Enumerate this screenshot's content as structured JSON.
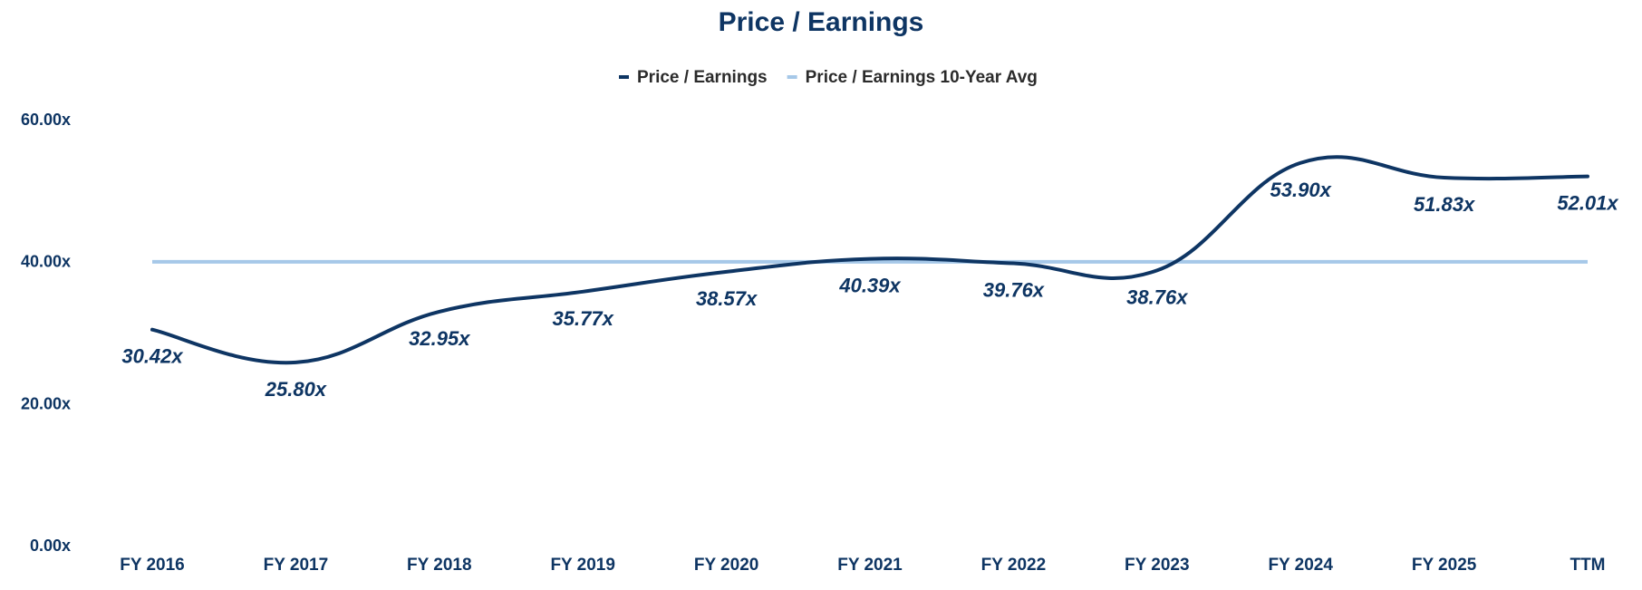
{
  "chart_data": {
    "type": "line",
    "title": "Price / Earnings",
    "xlabel": "",
    "ylabel": "",
    "categories": [
      "FY 2016",
      "FY 2017",
      "FY 2018",
      "FY 2019",
      "FY 2020",
      "FY 2021",
      "FY 2022",
      "FY 2023",
      "FY 2024",
      "FY 2025",
      "TTM"
    ],
    "series": [
      {
        "name": "Price / Earnings",
        "values": [
          30.42,
          25.8,
          32.95,
          35.77,
          38.57,
          40.39,
          39.76,
          38.76,
          53.9,
          51.83,
          52.01
        ],
        "labels": [
          "30.42x",
          "25.80x",
          "32.95x",
          "35.77x",
          "38.57x",
          "40.39x",
          "39.76x",
          "38.76x",
          "53.90x",
          "51.83x",
          "52.01x"
        ],
        "color": "#0e3563"
      },
      {
        "name": "Price / Earnings 10-Year Avg",
        "values": [
          39.97,
          39.97,
          39.97,
          39.97,
          39.97,
          39.97,
          39.97,
          39.97,
          39.97,
          39.97,
          39.97
        ],
        "color": "#a6c8e8"
      }
    ],
    "yticks": [
      "0.00x",
      "20.00x",
      "40.00x",
      "60.00x"
    ],
    "ytick_values": [
      0,
      20,
      40,
      60
    ],
    "ylim": [
      0,
      60
    ],
    "grid": false,
    "legend_position": "top-center",
    "text_color": "#0e3563",
    "legend_text_color": "#2b2b2b"
  }
}
